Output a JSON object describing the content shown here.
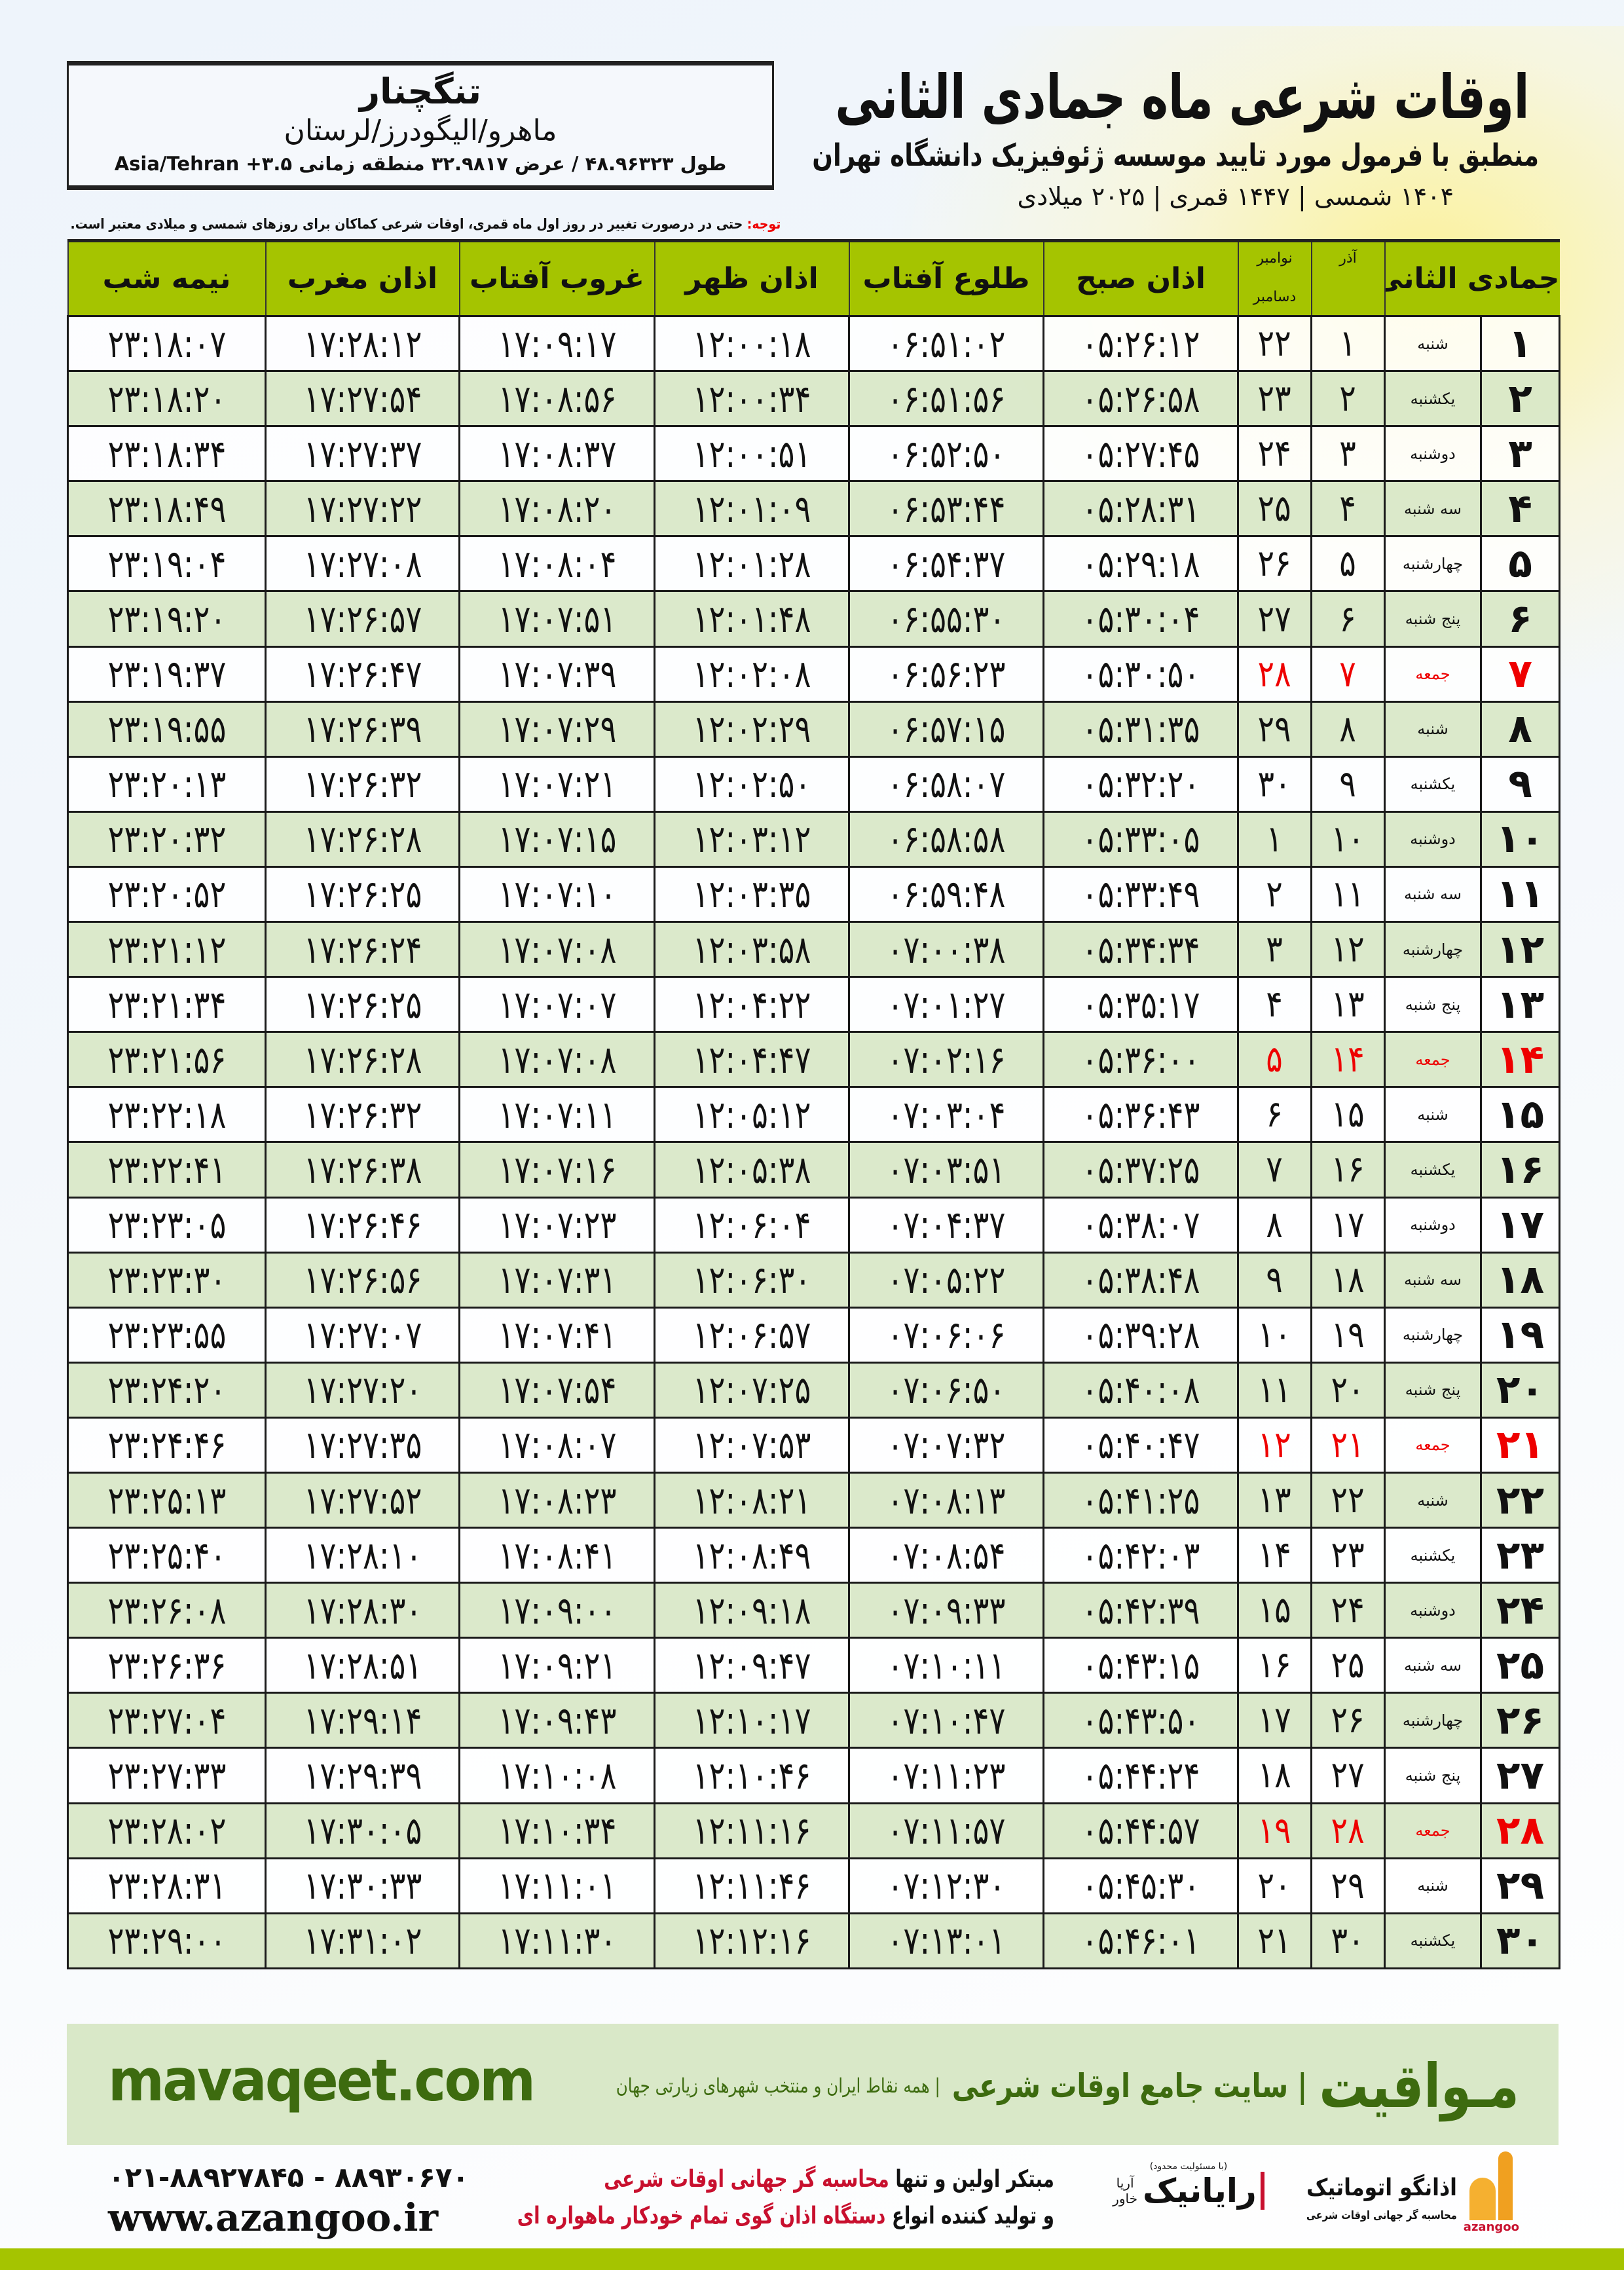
{
  "location": {
    "city": "تنگچنار",
    "region": "ماهرو/الیگودرز/لرستان",
    "coords": "طول ۴۸.۹۶۳۲۳ / عرض ۳۲.۹۸۱۷ منطقه زمانی ۳.۵+ Asia/Tehran"
  },
  "header": {
    "title": "اوقات شرعی ماه جمادی الثانی",
    "subtitle": "منطبق با فرمول مورد تایید موسسه ژئوفیزیک دانشگاه تهران",
    "years": "۱۴۰۴ شمسی | ۱۴۴۷ قمری | ۲۰۲۵ میلادی",
    "note_label": "توجه:",
    "note_text": " حتی در درصورت تغییر در روز اول ماه قمری، اوقات شرعی کماکان برای روزهای شمسی و میلادی معتبر است."
  },
  "colors": {
    "header_green": "#a5c400",
    "row_green": "#d9e8c8",
    "friday_red": "#e00000",
    "brand_green": "#3d6b0f"
  },
  "table": {
    "columns": [
      "جمادی الثانی",
      "آذر",
      "نوامبر",
      "دسامبر",
      "اذان صبح",
      "طلوع آفتاب",
      "اذان ظهر",
      "غروب آفتاب",
      "اذان مغرب",
      "نیمه شب"
    ],
    "rows": [
      {
        "day": "۱",
        "weekday": "شنبه",
        "azar": "۱",
        "greg": "۲۲",
        "fajr": "۰۵:۲۶:۱۲",
        "sunrise": "۰۶:۵۱:۰۲",
        "dhuhr": "۱۲:۰۰:۱۸",
        "sunset": "۱۷:۰۹:۱۷",
        "maghrib": "۱۷:۲۸:۱۲",
        "midnight": "۲۳:۱۸:۰۷"
      },
      {
        "day": "۲",
        "weekday": "یکشنبه",
        "azar": "۲",
        "greg": "۲۳",
        "fajr": "۰۵:۲۶:۵۸",
        "sunrise": "۰۶:۵۱:۵۶",
        "dhuhr": "۱۲:۰۰:۳۴",
        "sunset": "۱۷:۰۸:۵۶",
        "maghrib": "۱۷:۲۷:۵۴",
        "midnight": "۲۳:۱۸:۲۰"
      },
      {
        "day": "۳",
        "weekday": "دوشنبه",
        "azar": "۳",
        "greg": "۲۴",
        "fajr": "۰۵:۲۷:۴۵",
        "sunrise": "۰۶:۵۲:۵۰",
        "dhuhr": "۱۲:۰۰:۵۱",
        "sunset": "۱۷:۰۸:۳۷",
        "maghrib": "۱۷:۲۷:۳۷",
        "midnight": "۲۳:۱۸:۳۴"
      },
      {
        "day": "۴",
        "weekday": "سه شنبه",
        "azar": "۴",
        "greg": "۲۵",
        "fajr": "۰۵:۲۸:۳۱",
        "sunrise": "۰۶:۵۳:۴۴",
        "dhuhr": "۱۲:۰۱:۰۹",
        "sunset": "۱۷:۰۸:۲۰",
        "maghrib": "۱۷:۲۷:۲۲",
        "midnight": "۲۳:۱۸:۴۹"
      },
      {
        "day": "۵",
        "weekday": "چهارشنبه",
        "azar": "۵",
        "greg": "۲۶",
        "fajr": "۰۵:۲۹:۱۸",
        "sunrise": "۰۶:۵۴:۳۷",
        "dhuhr": "۱۲:۰۱:۲۸",
        "sunset": "۱۷:۰۸:۰۴",
        "maghrib": "۱۷:۲۷:۰۸",
        "midnight": "۲۳:۱۹:۰۴"
      },
      {
        "day": "۶",
        "weekday": "پنج شنبه",
        "azar": "۶",
        "greg": "۲۷",
        "fajr": "۰۵:۳۰:۰۴",
        "sunrise": "۰۶:۵۵:۳۰",
        "dhuhr": "۱۲:۰۱:۴۸",
        "sunset": "۱۷:۰۷:۵۱",
        "maghrib": "۱۷:۲۶:۵۷",
        "midnight": "۲۳:۱۹:۲۰"
      },
      {
        "day": "۷",
        "weekday": "جمعه",
        "azar": "۷",
        "greg": "۲۸",
        "fajr": "۰۵:۳۰:۵۰",
        "sunrise": "۰۶:۵۶:۲۳",
        "dhuhr": "۱۲:۰۲:۰۸",
        "sunset": "۱۷:۰۷:۳۹",
        "maghrib": "۱۷:۲۶:۴۷",
        "midnight": "۲۳:۱۹:۳۷",
        "friday": true
      },
      {
        "day": "۸",
        "weekday": "شنبه",
        "azar": "۸",
        "greg": "۲۹",
        "fajr": "۰۵:۳۱:۳۵",
        "sunrise": "۰۶:۵۷:۱۵",
        "dhuhr": "۱۲:۰۲:۲۹",
        "sunset": "۱۷:۰۷:۲۹",
        "maghrib": "۱۷:۲۶:۳۹",
        "midnight": "۲۳:۱۹:۵۵"
      },
      {
        "day": "۹",
        "weekday": "یکشنبه",
        "azar": "۹",
        "greg": "۳۰",
        "fajr": "۰۵:۳۲:۲۰",
        "sunrise": "۰۶:۵۸:۰۷",
        "dhuhr": "۱۲:۰۲:۵۰",
        "sunset": "۱۷:۰۷:۲۱",
        "maghrib": "۱۷:۲۶:۳۲",
        "midnight": "۲۳:۲۰:۱۳"
      },
      {
        "day": "۱۰",
        "weekday": "دوشنبه",
        "azar": "۱۰",
        "greg": "۱",
        "fajr": "۰۵:۳۳:۰۵",
        "sunrise": "۰۶:۵۸:۵۸",
        "dhuhr": "۱۲:۰۳:۱۲",
        "sunset": "۱۷:۰۷:۱۵",
        "maghrib": "۱۷:۲۶:۲۸",
        "midnight": "۲۳:۲۰:۳۲"
      },
      {
        "day": "۱۱",
        "weekday": "سه شنبه",
        "azar": "۱۱",
        "greg": "۲",
        "fajr": "۰۵:۳۳:۴۹",
        "sunrise": "۰۶:۵۹:۴۸",
        "dhuhr": "۱۲:۰۳:۳۵",
        "sunset": "۱۷:۰۷:۱۰",
        "maghrib": "۱۷:۲۶:۲۵",
        "midnight": "۲۳:۲۰:۵۲"
      },
      {
        "day": "۱۲",
        "weekday": "چهارشنبه",
        "azar": "۱۲",
        "greg": "۳",
        "fajr": "۰۵:۳۴:۳۴",
        "sunrise": "۰۷:۰۰:۳۸",
        "dhuhr": "۱۲:۰۳:۵۸",
        "sunset": "۱۷:۰۷:۰۸",
        "maghrib": "۱۷:۲۶:۲۴",
        "midnight": "۲۳:۲۱:۱۲"
      },
      {
        "day": "۱۳",
        "weekday": "پنج شنبه",
        "azar": "۱۳",
        "greg": "۴",
        "fajr": "۰۵:۳۵:۱۷",
        "sunrise": "۰۷:۰۱:۲۷",
        "dhuhr": "۱۲:۰۴:۲۲",
        "sunset": "۱۷:۰۷:۰۷",
        "maghrib": "۱۷:۲۶:۲۵",
        "midnight": "۲۳:۲۱:۳۴"
      },
      {
        "day": "۱۴",
        "weekday": "جمعه",
        "azar": "۱۴",
        "greg": "۵",
        "fajr": "۰۵:۳۶:۰۰",
        "sunrise": "۰۷:۰۲:۱۶",
        "dhuhr": "۱۲:۰۴:۴۷",
        "sunset": "۱۷:۰۷:۰۸",
        "maghrib": "۱۷:۲۶:۲۸",
        "midnight": "۲۳:۲۱:۵۶",
        "friday": true
      },
      {
        "day": "۱۵",
        "weekday": "شنبه",
        "azar": "۱۵",
        "greg": "۶",
        "fajr": "۰۵:۳۶:۴۳",
        "sunrise": "۰۷:۰۳:۰۴",
        "dhuhr": "۱۲:۰۵:۱۲",
        "sunset": "۱۷:۰۷:۱۱",
        "maghrib": "۱۷:۲۶:۳۲",
        "midnight": "۲۳:۲۲:۱۸"
      },
      {
        "day": "۱۶",
        "weekday": "یکشنبه",
        "azar": "۱۶",
        "greg": "۷",
        "fajr": "۰۵:۳۷:۲۵",
        "sunrise": "۰۷:۰۳:۵۱",
        "dhuhr": "۱۲:۰۵:۳۸",
        "sunset": "۱۷:۰۷:۱۶",
        "maghrib": "۱۷:۲۶:۳۸",
        "midnight": "۲۳:۲۲:۴۱"
      },
      {
        "day": "۱۷",
        "weekday": "دوشنبه",
        "azar": "۱۷",
        "greg": "۸",
        "fajr": "۰۵:۳۸:۰۷",
        "sunrise": "۰۷:۰۴:۳۷",
        "dhuhr": "۱۲:۰۶:۰۴",
        "sunset": "۱۷:۰۷:۲۳",
        "maghrib": "۱۷:۲۶:۴۶",
        "midnight": "۲۳:۲۳:۰۵"
      },
      {
        "day": "۱۸",
        "weekday": "سه شنبه",
        "azar": "۱۸",
        "greg": "۹",
        "fajr": "۰۵:۳۸:۴۸",
        "sunrise": "۰۷:۰۵:۲۲",
        "dhuhr": "۱۲:۰۶:۳۰",
        "sunset": "۱۷:۰۷:۳۱",
        "maghrib": "۱۷:۲۶:۵۶",
        "midnight": "۲۳:۲۳:۳۰"
      },
      {
        "day": "۱۹",
        "weekday": "چهارشنبه",
        "azar": "۱۹",
        "greg": "۱۰",
        "fajr": "۰۵:۳۹:۲۸",
        "sunrise": "۰۷:۰۶:۰۶",
        "dhuhr": "۱۲:۰۶:۵۷",
        "sunset": "۱۷:۰۷:۴۱",
        "maghrib": "۱۷:۲۷:۰۷",
        "midnight": "۲۳:۲۳:۵۵"
      },
      {
        "day": "۲۰",
        "weekday": "پنج شنبه",
        "azar": "۲۰",
        "greg": "۱۱",
        "fajr": "۰۵:۴۰:۰۸",
        "sunrise": "۰۷:۰۶:۵۰",
        "dhuhr": "۱۲:۰۷:۲۵",
        "sunset": "۱۷:۰۷:۵۴",
        "maghrib": "۱۷:۲۷:۲۰",
        "midnight": "۲۳:۲۴:۲۰"
      },
      {
        "day": "۲۱",
        "weekday": "جمعه",
        "azar": "۲۱",
        "greg": "۱۲",
        "fajr": "۰۵:۴۰:۴۷",
        "sunrise": "۰۷:۰۷:۳۲",
        "dhuhr": "۱۲:۰۷:۵۳",
        "sunset": "۱۷:۰۸:۰۷",
        "maghrib": "۱۷:۲۷:۳۵",
        "midnight": "۲۳:۲۴:۴۶",
        "friday": true
      },
      {
        "day": "۲۲",
        "weekday": "شنبه",
        "azar": "۲۲",
        "greg": "۱۳",
        "fajr": "۰۵:۴۱:۲۵",
        "sunrise": "۰۷:۰۸:۱۳",
        "dhuhr": "۱۲:۰۸:۲۱",
        "sunset": "۱۷:۰۸:۲۳",
        "maghrib": "۱۷:۲۷:۵۲",
        "midnight": "۲۳:۲۵:۱۳"
      },
      {
        "day": "۲۳",
        "weekday": "یکشنبه",
        "azar": "۲۳",
        "greg": "۱۴",
        "fajr": "۰۵:۴۲:۰۳",
        "sunrise": "۰۷:۰۸:۵۴",
        "dhuhr": "۱۲:۰۸:۴۹",
        "sunset": "۱۷:۰۸:۴۱",
        "maghrib": "۱۷:۲۸:۱۰",
        "midnight": "۲۳:۲۵:۴۰"
      },
      {
        "day": "۲۴",
        "weekday": "دوشنبه",
        "azar": "۲۴",
        "greg": "۱۵",
        "fajr": "۰۵:۴۲:۳۹",
        "sunrise": "۰۷:۰۹:۳۳",
        "dhuhr": "۱۲:۰۹:۱۸",
        "sunset": "۱۷:۰۹:۰۰",
        "maghrib": "۱۷:۲۸:۳۰",
        "midnight": "۲۳:۲۶:۰۸"
      },
      {
        "day": "۲۵",
        "weekday": "سه شنبه",
        "azar": "۲۵",
        "greg": "۱۶",
        "fajr": "۰۵:۴۳:۱۵",
        "sunrise": "۰۷:۱۰:۱۱",
        "dhuhr": "۱۲:۰۹:۴۷",
        "sunset": "۱۷:۰۹:۲۱",
        "maghrib": "۱۷:۲۸:۵۱",
        "midnight": "۲۳:۲۶:۳۶"
      },
      {
        "day": "۲۶",
        "weekday": "چهارشنبه",
        "azar": "۲۶",
        "greg": "۱۷",
        "fajr": "۰۵:۴۳:۵۰",
        "sunrise": "۰۷:۱۰:۴۷",
        "dhuhr": "۱۲:۱۰:۱۷",
        "sunset": "۱۷:۰۹:۴۳",
        "maghrib": "۱۷:۲۹:۱۴",
        "midnight": "۲۳:۲۷:۰۴"
      },
      {
        "day": "۲۷",
        "weekday": "پنج شنبه",
        "azar": "۲۷",
        "greg": "۱۸",
        "fajr": "۰۵:۴۴:۲۴",
        "sunrise": "۰۷:۱۱:۲۳",
        "dhuhr": "۱۲:۱۰:۴۶",
        "sunset": "۱۷:۱۰:۰۸",
        "maghrib": "۱۷:۲۹:۳۹",
        "midnight": "۲۳:۲۷:۳۳"
      },
      {
        "day": "۲۸",
        "weekday": "جمعه",
        "azar": "۲۸",
        "greg": "۱۹",
        "fajr": "۰۵:۴۴:۵۷",
        "sunrise": "۰۷:۱۱:۵۷",
        "dhuhr": "۱۲:۱۱:۱۶",
        "sunset": "۱۷:۱۰:۳۴",
        "maghrib": "۱۷:۳۰:۰۵",
        "midnight": "۲۳:۲۸:۰۲",
        "friday": true
      },
      {
        "day": "۲۹",
        "weekday": "شنبه",
        "azar": "۲۹",
        "greg": "۲۰",
        "fajr": "۰۵:۴۵:۳۰",
        "sunrise": "۰۷:۱۲:۳۰",
        "dhuhr": "۱۲:۱۱:۴۶",
        "sunset": "۱۷:۱۱:۰۱",
        "maghrib": "۱۷:۳۰:۳۳",
        "midnight": "۲۳:۲۸:۳۱"
      },
      {
        "day": "۳۰",
        "weekday": "یکشنبه",
        "azar": "۳۰",
        "greg": "۲۱",
        "fajr": "۰۵:۴۶:۰۱",
        "sunrise": "۰۷:۱۳:۰۱",
        "dhuhr": "۱۲:۱۲:۱۶",
        "sunset": "۱۷:۱۱:۳۰",
        "maghrib": "۱۷:۳۱:۰۲",
        "midnight": "۲۳:۲۹:۰۰"
      }
    ]
  },
  "footer": {
    "site": "mavaqeet.com",
    "brand": "مـواقیت",
    "brand_tagline": "| سایت جامع اوقات شرعی",
    "brand_sub": "| همه نقاط ایران و منتخب شهرهای زیارتی جهان",
    "phone": "۰۲۱-۸۸۹۲۷۸۴۵ - ۸۸۹۳۰۶۷۰",
    "web": "www.azangoo.ir",
    "line1_a": "مبتکر اولین و تنها ",
    "line1_b": "محاسبه گر جهانی اوقات شرعی",
    "line2_a": "و تولید کننده انواع ",
    "line2_b": "دستگاه اذان گوی تمام خودکار ماهواره ای",
    "rayanik": "رایانیک",
    "rayanik_sub": "آریا خاور",
    "rayanik_note": "(با مسئولیت محدود)",
    "azangoo_logo": "اذانگو اتوماتیک",
    "azangoo_sub": "محاسبه گر جهانی اوقات شرعی",
    "azangoo_latin": "azangoo"
  }
}
